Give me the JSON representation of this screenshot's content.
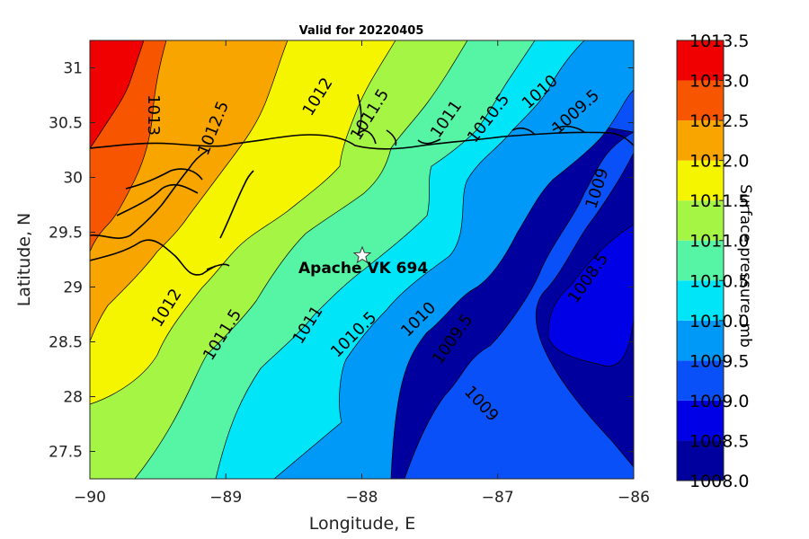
{
  "chart_data": {
    "type": "contourf",
    "title": "Valid for 20220405",
    "xlabel": "Longitude, E",
    "ylabel": "Latitude, N",
    "xlim": [
      -90,
      -86
    ],
    "ylim": [
      27.25,
      31.25
    ],
    "xticks": [
      -90,
      -89,
      -88,
      -87,
      -86
    ],
    "yticks": [
      27.5,
      28,
      28.5,
      29,
      29.5,
      30,
      30.5,
      31
    ],
    "levels": [
      1008.0,
      1008.5,
      1009.0,
      1009.5,
      1010.0,
      1010.5,
      1011.0,
      1011.5,
      1012.0,
      1012.5,
      1013.0,
      1013.5
    ],
    "level_colors": [
      "#00009f",
      "#0000e6",
      "#0a50f8",
      "#0099f8",
      "#00e5f8",
      "#55f5a5",
      "#a5f545",
      "#f5f500",
      "#f8a500",
      "#f85500",
      "#f00000"
    ],
    "colorbar": {
      "label": "Surface pressure, mb",
      "tick_labels": [
        "1008.0",
        "1008.5",
        "1009.0",
        "1009.5",
        "1010.0",
        "1010.5",
        "1011.0",
        "1011.5",
        "1012.0",
        "1012.5",
        "1013.0",
        "1013.5"
      ]
    },
    "contour_labels": [
      "1013",
      "1012.5",
      "1012",
      "1011.5",
      "1011",
      "1010.5",
      "1010",
      "1009.5",
      "1009",
      "1012",
      "1011.5",
      "1011",
      "1010.5",
      "1010",
      "1009.5",
      "1009",
      "1008.5"
    ],
    "station": {
      "name": "Apache VK 694",
      "lon": -88.0,
      "lat": 29.28
    },
    "coastline": true
  }
}
